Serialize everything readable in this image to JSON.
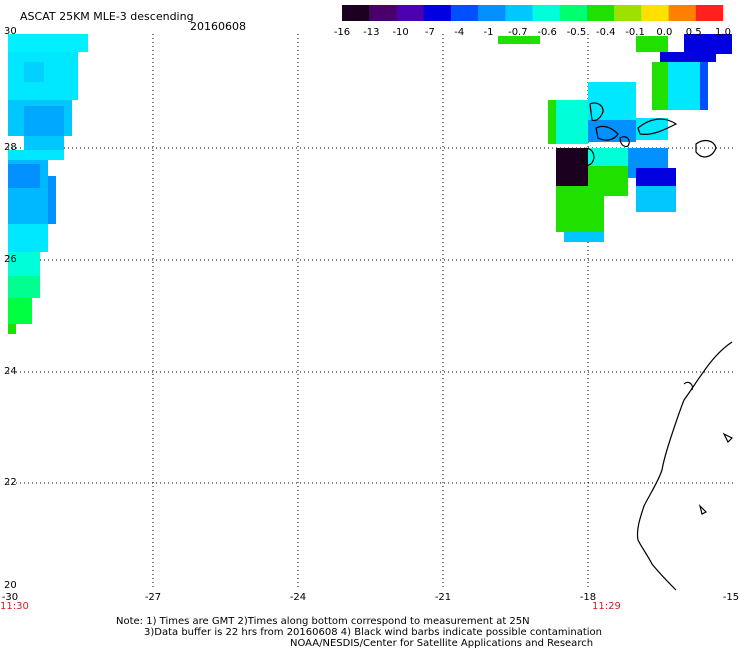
{
  "title": "ASCAT 25KM MLE-3 descending",
  "date": "20160608",
  "colorbar": {
    "labels": [
      "-16",
      "-13",
      "-10",
      "-7",
      "-4",
      "-1",
      "-0.7",
      "-0.6",
      "-0.5",
      "-0.4",
      "-0.1",
      "0.0",
      "0.5",
      "1.0"
    ],
    "colors": [
      "#1c0020",
      "#4a006a",
      "#4a00b0",
      "#0000e0",
      "#0050ff",
      "#0090ff",
      "#00c8ff",
      "#00ffd8",
      "#00ff70",
      "#20e000",
      "#a0e000",
      "#ffe000",
      "#ff8000",
      "#ff2020"
    ]
  },
  "axes": {
    "y_labels": [
      "30",
      "28",
      "26",
      "24",
      "22",
      "20"
    ],
    "x_labels": [
      "-30",
      "-27",
      "-24",
      "-21",
      "-18",
      "-15"
    ]
  },
  "times": [
    "11:30",
    "11:29"
  ],
  "notes": [
    "Note: 1) Times are GMT 2)Times along bottom correspond to measurement at 25N",
    "3)Data buffer is 22 hrs from 20160608 4) Black wind barbs indicate possible contamination",
    "NOAA/NESDIS/Center for Satellite Applications and Research"
  ]
}
